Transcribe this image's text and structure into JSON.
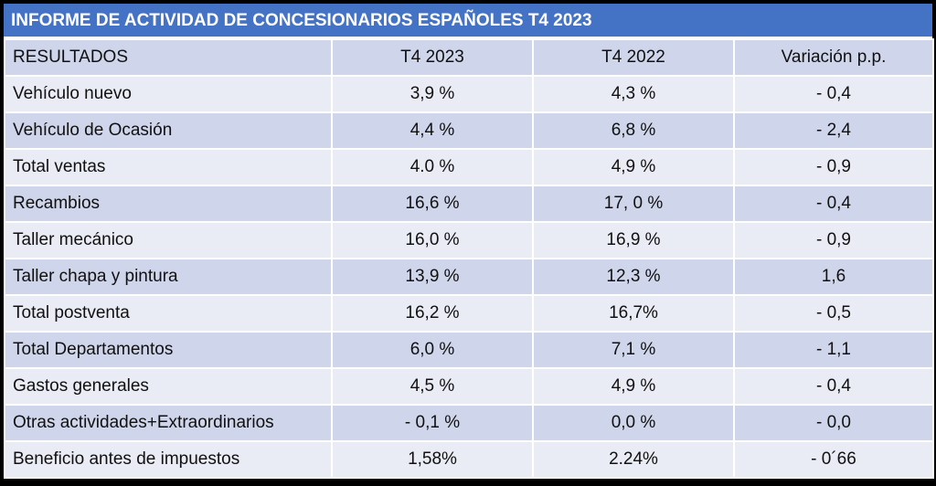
{
  "title": "INFORME DE ACTIVIDAD DE CONCESIONARIOS ESPAÑOLES T4 2023",
  "table": {
    "header": [
      "RESULTADOS",
      "T4 2023",
      "T4 2022",
      "Variación p.p."
    ],
    "rows": [
      [
        "Vehículo nuevo",
        "3,9 %",
        "4,3 %",
        "- 0,4"
      ],
      [
        "Vehículo de Ocasión",
        "4,4 %",
        "6,8 %",
        "- 2,4"
      ],
      [
        "Total ventas",
        "4.0 %",
        "4,9 %",
        "- 0,9"
      ],
      [
        "Recambios",
        "16,6 %",
        "17, 0 %",
        "- 0,4"
      ],
      [
        "Taller mecánico",
        "16,0 %",
        "16,9 %",
        "- 0,9"
      ],
      [
        "Taller chapa y pintura",
        "13,9 %",
        "12,3 %",
        "1,6"
      ],
      [
        "Total postventa",
        "16,2 %",
        "16,7%",
        "- 0,5"
      ],
      [
        "Total Departamentos",
        "6,0 %",
        "7,1 %",
        "- 1,1"
      ],
      [
        "Gastos generales",
        "4,5 %",
        "4,9 %",
        "- 0,4"
      ],
      [
        "Otras actividades+Extraordinarios",
        "- 0,1 %",
        "0,0 %",
        "- 0,0"
      ],
      [
        "Beneficio antes de impuestos",
        "1,58%",
        "2.24%",
        "- 0´66"
      ]
    ]
  }
}
